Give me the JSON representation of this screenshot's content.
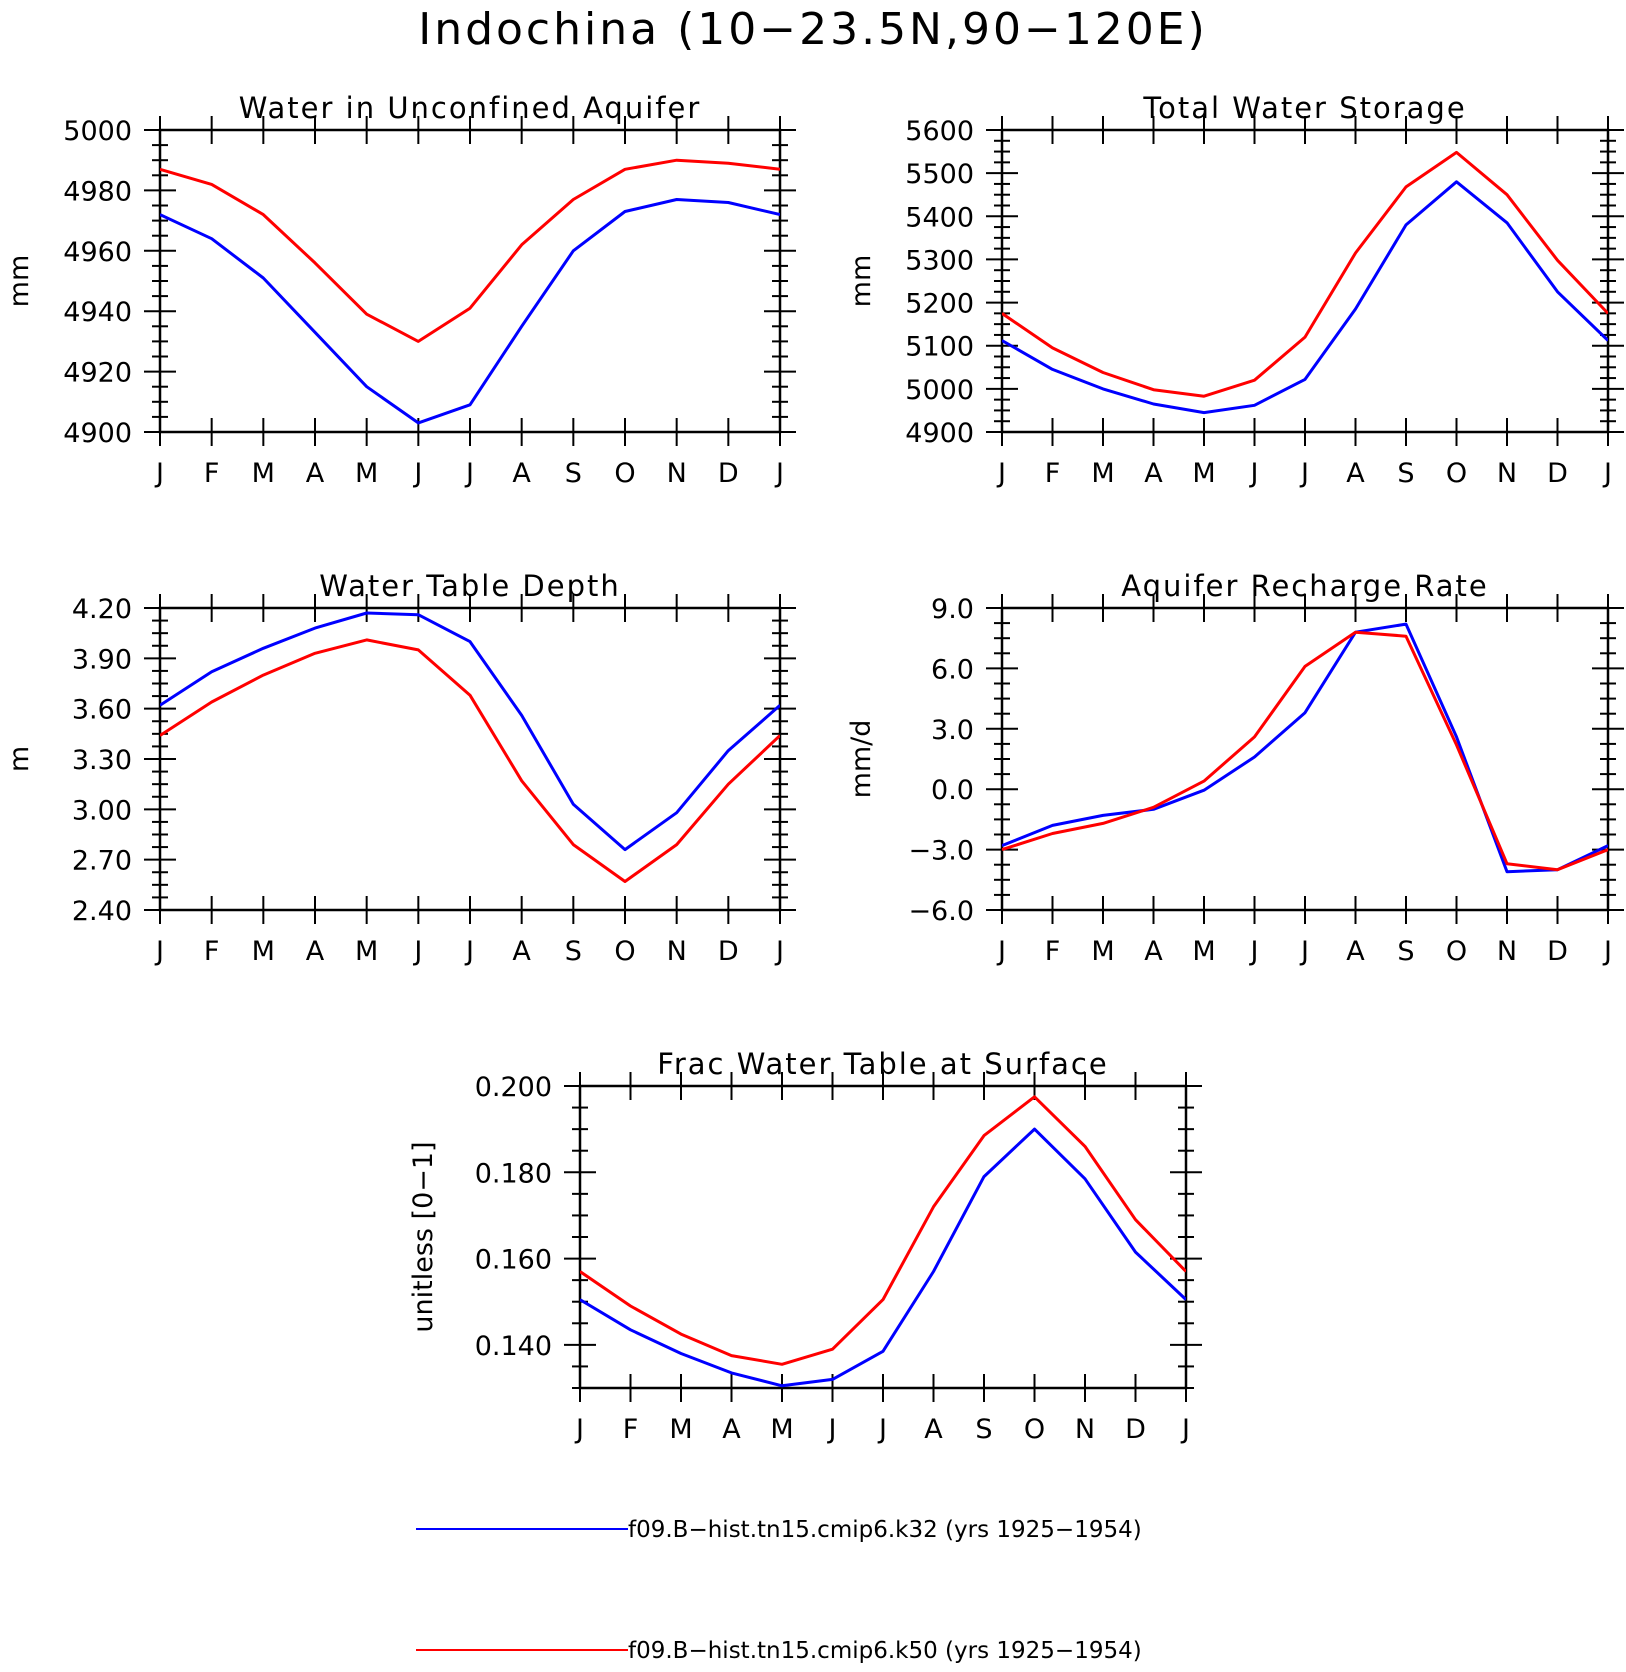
{
  "figure_title": "Indochina (10−23.5N,90−120E)",
  "colors": {
    "k32": "#0000ff",
    "k50": "#ff0000",
    "axes": "#000000"
  },
  "legend": [
    {
      "label": "f09.B−hist.tn15.cmip6.k32 (yrs 1925−1954)",
      "color": "#0000ff"
    },
    {
      "label": "f09.B−hist.tn15.cmip6.k50 (yrs 1925−1954)",
      "color": "#ff0000"
    }
  ],
  "chart_data": [
    {
      "type": "line",
      "title": "Water in Unconfined Aquifer",
      "ylabel": "mm",
      "xlabel": "",
      "categories": [
        "J",
        "F",
        "M",
        "A",
        "M",
        "J",
        "J",
        "A",
        "S",
        "O",
        "N",
        "D",
        "J"
      ],
      "ylim": [
        4900,
        5000
      ],
      "yticks": [
        "4900",
        "4920",
        "4940",
        "4960",
        "4980",
        "5000"
      ],
      "series": [
        {
          "name": "f09.B−hist.tn15.cmip6.k32 (yrs 1925−1954)",
          "color": "#0000ff",
          "values": [
            4972,
            4964,
            4951,
            4933,
            4915,
            4903,
            4909,
            4935,
            4960,
            4973,
            4977,
            4976,
            4972
          ]
        },
        {
          "name": "f09.B−hist.tn15.cmip6.k50 (yrs 1925−1954)",
          "color": "#ff0000",
          "values": [
            4987,
            4982,
            4972,
            4956,
            4939,
            4930,
            4941,
            4962,
            4977,
            4987,
            4990,
            4989,
            4987
          ]
        }
      ]
    },
    {
      "type": "line",
      "title": "Total Water Storage",
      "ylabel": "mm",
      "xlabel": "",
      "categories": [
        "J",
        "F",
        "M",
        "A",
        "M",
        "J",
        "J",
        "A",
        "S",
        "O",
        "N",
        "D",
        "J"
      ],
      "ylim": [
        4900,
        5600
      ],
      "yticks": [
        "4900",
        "5000",
        "5100",
        "5200",
        "5300",
        "5400",
        "5500",
        "5600"
      ],
      "series": [
        {
          "name": "f09.B−hist.tn15.cmip6.k32 (yrs 1925−1954)",
          "color": "#0000ff",
          "values": [
            5112,
            5045,
            5000,
            4965,
            4945,
            4962,
            5022,
            5185,
            5380,
            5480,
            5385,
            5225,
            5112
          ]
        },
        {
          "name": "f09.B−hist.tn15.cmip6.k50 (yrs 1925−1954)",
          "color": "#ff0000",
          "values": [
            5175,
            5095,
            5038,
            4998,
            4983,
            5020,
            5120,
            5315,
            5468,
            5548,
            5450,
            5298,
            5175
          ]
        }
      ]
    },
    {
      "type": "line",
      "title": "Water Table Depth",
      "ylabel": "m",
      "xlabel": "",
      "categories": [
        "J",
        "F",
        "M",
        "A",
        "M",
        "J",
        "J",
        "A",
        "S",
        "O",
        "N",
        "D",
        "J"
      ],
      "ylim": [
        2.4,
        4.2
      ],
      "yticks": [
        "2.40",
        "2.70",
        "3.00",
        "3.30",
        "3.60",
        "3.90",
        "4.20"
      ],
      "series": [
        {
          "name": "f09.B−hist.tn15.cmip6.k32 (yrs 1925−1954)",
          "color": "#0000ff",
          "values": [
            3.62,
            3.82,
            3.96,
            4.08,
            4.17,
            4.16,
            4.0,
            3.56,
            3.03,
            2.76,
            2.98,
            3.35,
            3.62
          ]
        },
        {
          "name": "f09.B−hist.tn15.cmip6.k50 (yrs 1925−1954)",
          "color": "#ff0000",
          "values": [
            3.44,
            3.64,
            3.8,
            3.93,
            4.01,
            3.95,
            3.68,
            3.17,
            2.79,
            2.57,
            2.79,
            3.15,
            3.44
          ]
        }
      ]
    },
    {
      "type": "line",
      "title": "Aquifer Recharge Rate",
      "ylabel": "mm/d",
      "xlabel": "",
      "categories": [
        "J",
        "F",
        "M",
        "A",
        "M",
        "J",
        "J",
        "A",
        "S",
        "O",
        "N",
        "D",
        "J"
      ],
      "ylim": [
        -6.0,
        9.0
      ],
      "yticks": [
        "−6.0",
        "−3.0",
        "0.0",
        "3.0",
        "6.0",
        "9.0"
      ],
      "series": [
        {
          "name": "f09.B−hist.tn15.cmip6.k32 (yrs 1925−1954)",
          "color": "#0000ff",
          "values": [
            -2.8,
            -1.8,
            -1.3,
            -1.0,
            -0.05,
            1.6,
            3.8,
            7.8,
            8.2,
            2.6,
            -4.1,
            -4.0,
            -2.8
          ]
        },
        {
          "name": "f09.B−hist.tn15.cmip6.k50 (yrs 1925−1954)",
          "color": "#ff0000",
          "values": [
            -3.0,
            -2.2,
            -1.7,
            -0.9,
            0.4,
            2.6,
            6.1,
            7.8,
            7.6,
            2.2,
            -3.7,
            -4.0,
            -3.0
          ]
        }
      ]
    },
    {
      "type": "line",
      "title": "Frac Water Table at Surface",
      "ylabel": "unitless [0−1]",
      "xlabel": "",
      "categories": [
        "J",
        "F",
        "M",
        "A",
        "M",
        "J",
        "J",
        "A",
        "S",
        "O",
        "N",
        "D",
        "J"
      ],
      "ylim": [
        0.13,
        0.2
      ],
      "yticks": [
        "0.140",
        "0.160",
        "0.180",
        "0.200"
      ],
      "series": [
        {
          "name": "f09.B−hist.tn15.cmip6.k32 (yrs 1925−1954)",
          "color": "#0000ff",
          "values": [
            0.1505,
            0.1435,
            0.138,
            0.1335,
            0.1305,
            0.132,
            0.1385,
            0.157,
            0.179,
            0.19,
            0.1785,
            0.1615,
            0.1505
          ]
        },
        {
          "name": "f09.B−hist.tn15.cmip6.k50 (yrs 1925−1954)",
          "color": "#ff0000",
          "values": [
            0.157,
            0.149,
            0.1425,
            0.1375,
            0.1355,
            0.139,
            0.1505,
            0.172,
            0.1885,
            0.1975,
            0.186,
            0.169,
            0.157
          ]
        }
      ]
    }
  ]
}
